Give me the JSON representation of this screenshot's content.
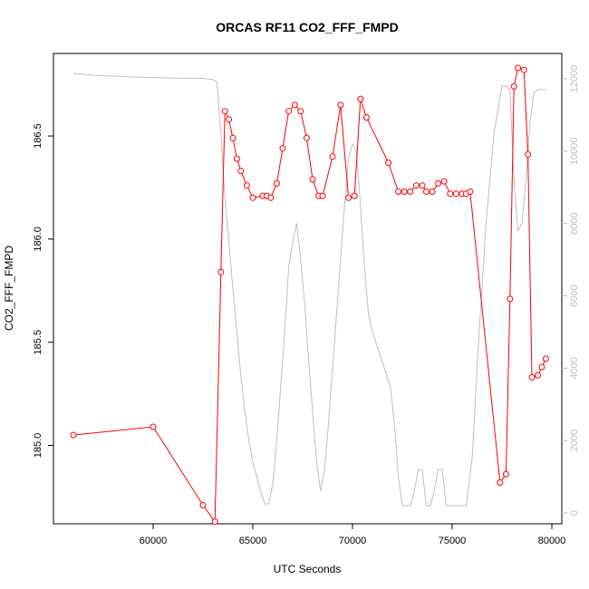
{
  "chart_data": {
    "type": "line",
    "title": "ORCAS RF11 CO2_FFF_FMPD",
    "xlabel": "UTC Seconds",
    "ylabel": "CO2_FFF_FMPD",
    "xlim": [
      55000,
      80500
    ],
    "ylim": [
      184.62,
      186.9
    ],
    "y2lim": [
      -300,
      12700
    ],
    "x_ticks": [
      60000,
      65000,
      70000,
      75000,
      80000
    ],
    "y_ticks": [
      185.0,
      185.5,
      186.0,
      186.5
    ],
    "y2_ticks": [
      0,
      2000,
      4000,
      6000,
      8000,
      10000,
      12000
    ],
    "x_tick_labels": [
      "60000",
      "65000",
      "70000",
      "75000",
      "80000"
    ],
    "y_tick_labels": [
      "185.0",
      "185.5",
      "186.0",
      "186.5"
    ],
    "y2_tick_labels": [
      "0",
      "2000",
      "4000",
      "6000",
      "8000",
      "10000",
      "12000"
    ],
    "series": [
      {
        "role": "co2",
        "axis": "left",
        "color": "#ff0000",
        "markers": "open-circle",
        "x": [
          56000,
          60000,
          62500,
          63100,
          63400,
          63600,
          63800,
          64000,
          64200,
          64400,
          64700,
          65000,
          65500,
          65700,
          65900,
          66200,
          66500,
          66800,
          67100,
          67400,
          67700,
          68000,
          68300,
          68500,
          69000,
          69400,
          69800,
          70100,
          70400,
          70700,
          71800,
          72300,
          72600,
          72900,
          73200,
          73500,
          73700,
          74000,
          74300,
          74600,
          74900,
          75200,
          75500,
          75700,
          75900,
          77400,
          77700,
          77900,
          78100,
          78300,
          78600,
          78800,
          79000,
          79300,
          79500,
          79700
        ],
        "y": [
          185.05,
          185.09,
          184.71,
          184.63,
          185.84,
          186.62,
          186.58,
          186.49,
          186.39,
          186.33,
          186.26,
          186.2,
          186.21,
          186.21,
          186.2,
          186.27,
          186.44,
          186.62,
          186.65,
          186.62,
          186.49,
          186.29,
          186.21,
          186.21,
          186.4,
          186.65,
          186.2,
          186.21,
          186.68,
          186.59,
          186.37,
          186.23,
          186.23,
          186.23,
          186.26,
          186.26,
          186.23,
          186.23,
          186.27,
          186.28,
          186.22,
          186.22,
          186.22,
          186.22,
          186.23,
          184.82,
          184.86,
          185.71,
          186.74,
          186.83,
          186.82,
          186.41,
          185.33,
          185.34,
          185.38,
          185.42
        ]
      },
      {
        "role": "altitude",
        "axis": "right",
        "color": "#bebebe",
        "markers": "none",
        "x": [
          56000,
          57000,
          59000,
          61000,
          62500,
          63000,
          63200,
          63400,
          63600,
          63800,
          64000,
          64200,
          64400,
          64600,
          64800,
          65000,
          65200,
          65400,
          65600,
          65800,
          66000,
          66200,
          66400,
          66600,
          66800,
          67000,
          67200,
          67400,
          67600,
          67800,
          68000,
          68200,
          68400,
          68600,
          68800,
          69000,
          69200,
          69400,
          69600,
          69800,
          70000,
          70200,
          70400,
          70600,
          70800,
          71000,
          71300,
          71600,
          71900,
          72100,
          72300,
          72500,
          72700,
          72900,
          73100,
          73300,
          73500,
          73700,
          73900,
          74100,
          74300,
          74500,
          74700,
          74900,
          75100,
          75400,
          75700,
          76000,
          76300,
          76700,
          77100,
          77500,
          77700,
          77900,
          78100,
          78300,
          78500,
          78700,
          78900,
          79100,
          79300,
          79500,
          79700
        ],
        "y": [
          12150,
          12100,
          12050,
          12020,
          12010,
          11980,
          11900,
          10500,
          8700,
          7500,
          6200,
          5000,
          3800,
          2800,
          2000,
          1400,
          1000,
          600,
          250,
          250,
          800,
          2000,
          3500,
          5000,
          6800,
          7500,
          8000,
          7000,
          5800,
          4200,
          2800,
          1400,
          600,
          1200,
          2500,
          4000,
          5500,
          7000,
          8500,
          9800,
          10200,
          10000,
          8500,
          6800,
          5500,
          5000,
          4500,
          4000,
          3500,
          2500,
          1000,
          200,
          200,
          200,
          600,
          1200,
          1200,
          200,
          200,
          600,
          1200,
          1200,
          200,
          200,
          200,
          200,
          200,
          1500,
          4500,
          8000,
          10500,
          11800,
          11800,
          11700,
          9200,
          7800,
          8000,
          9200,
          10800,
          11600,
          11700,
          11700,
          11700
        ]
      }
    ]
  }
}
